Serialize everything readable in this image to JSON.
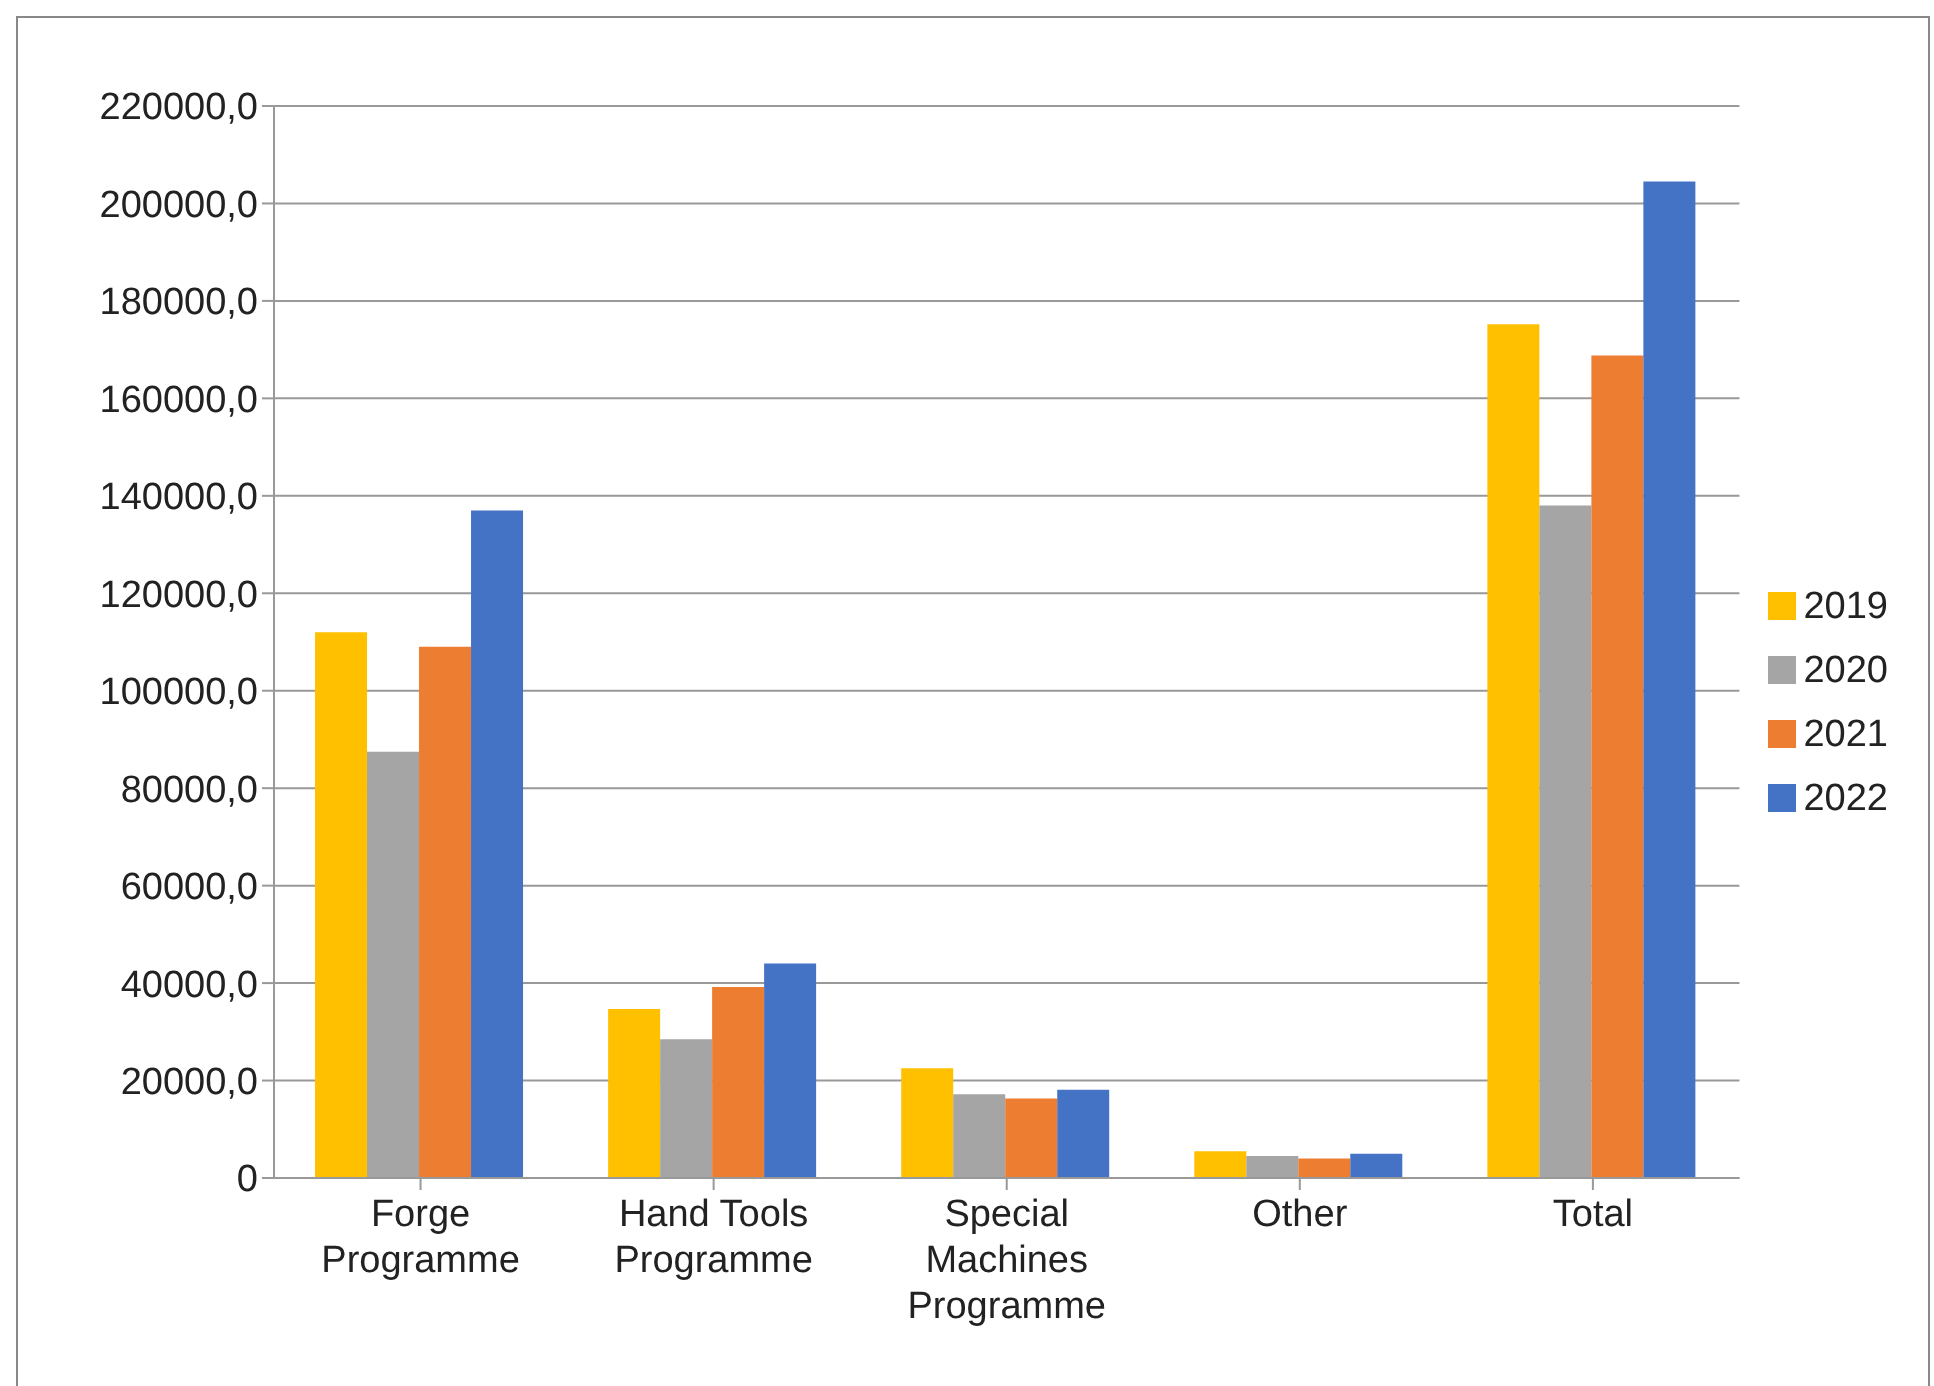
{
  "chart_data": {
    "type": "bar",
    "categories": [
      "Forge Programme",
      "Hand Tools Programme",
      "Special Machines Programme",
      "Other",
      "Total"
    ],
    "series": [
      {
        "name": "2019",
        "color": "#ffc000",
        "values": [
          112000,
          34700,
          22500,
          5500,
          175200
        ]
      },
      {
        "name": "2020",
        "color": "#a5a5a5",
        "values": [
          87500,
          28500,
          17200,
          4500,
          138000
        ]
      },
      {
        "name": "2021",
        "color": "#ed7d31",
        "values": [
          109000,
          39200,
          16300,
          4000,
          168800
        ]
      },
      {
        "name": "2022",
        "color": "#4472c4",
        "values": [
          137000,
          44000,
          18100,
          5000,
          204500
        ]
      }
    ],
    "ylim": [
      0,
      220000
    ],
    "yticks": [
      {
        "value": 0,
        "label": "0"
      },
      {
        "value": 20000,
        "label": "20000,0"
      },
      {
        "value": 40000,
        "label": "40000,0"
      },
      {
        "value": 60000,
        "label": "60000,0"
      },
      {
        "value": 80000,
        "label": "80000,0"
      },
      {
        "value": 100000,
        "label": "100000,0"
      },
      {
        "value": 120000,
        "label": "120000,0"
      },
      {
        "value": 140000,
        "label": "140000,0"
      },
      {
        "value": 160000,
        "label": "160000,0"
      },
      {
        "value": 180000,
        "label": "180000,0"
      },
      {
        "value": 200000,
        "label": "200000,0"
      },
      {
        "value": 220000,
        "label": "220000,0"
      }
    ],
    "grid": "y",
    "legend": "right"
  }
}
